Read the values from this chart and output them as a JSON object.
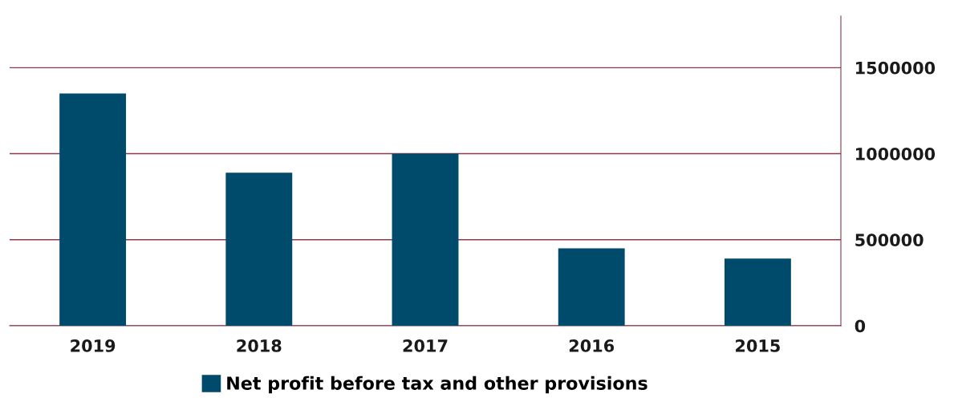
{
  "chart_data": {
    "type": "bar",
    "categories": [
      "2019",
      "2018",
      "2017",
      "2016",
      "2015"
    ],
    "series": [
      {
        "name": "Net profit before tax and other provisions",
        "color": "#004a6b",
        "values": [
          1350000,
          890000,
          1000000,
          450000,
          390000
        ]
      }
    ],
    "ylim": [
      0,
      1800000
    ],
    "yticks": [
      0,
      500000,
      1000000,
      1500000
    ],
    "grid": "y",
    "legend": "bottom"
  }
}
